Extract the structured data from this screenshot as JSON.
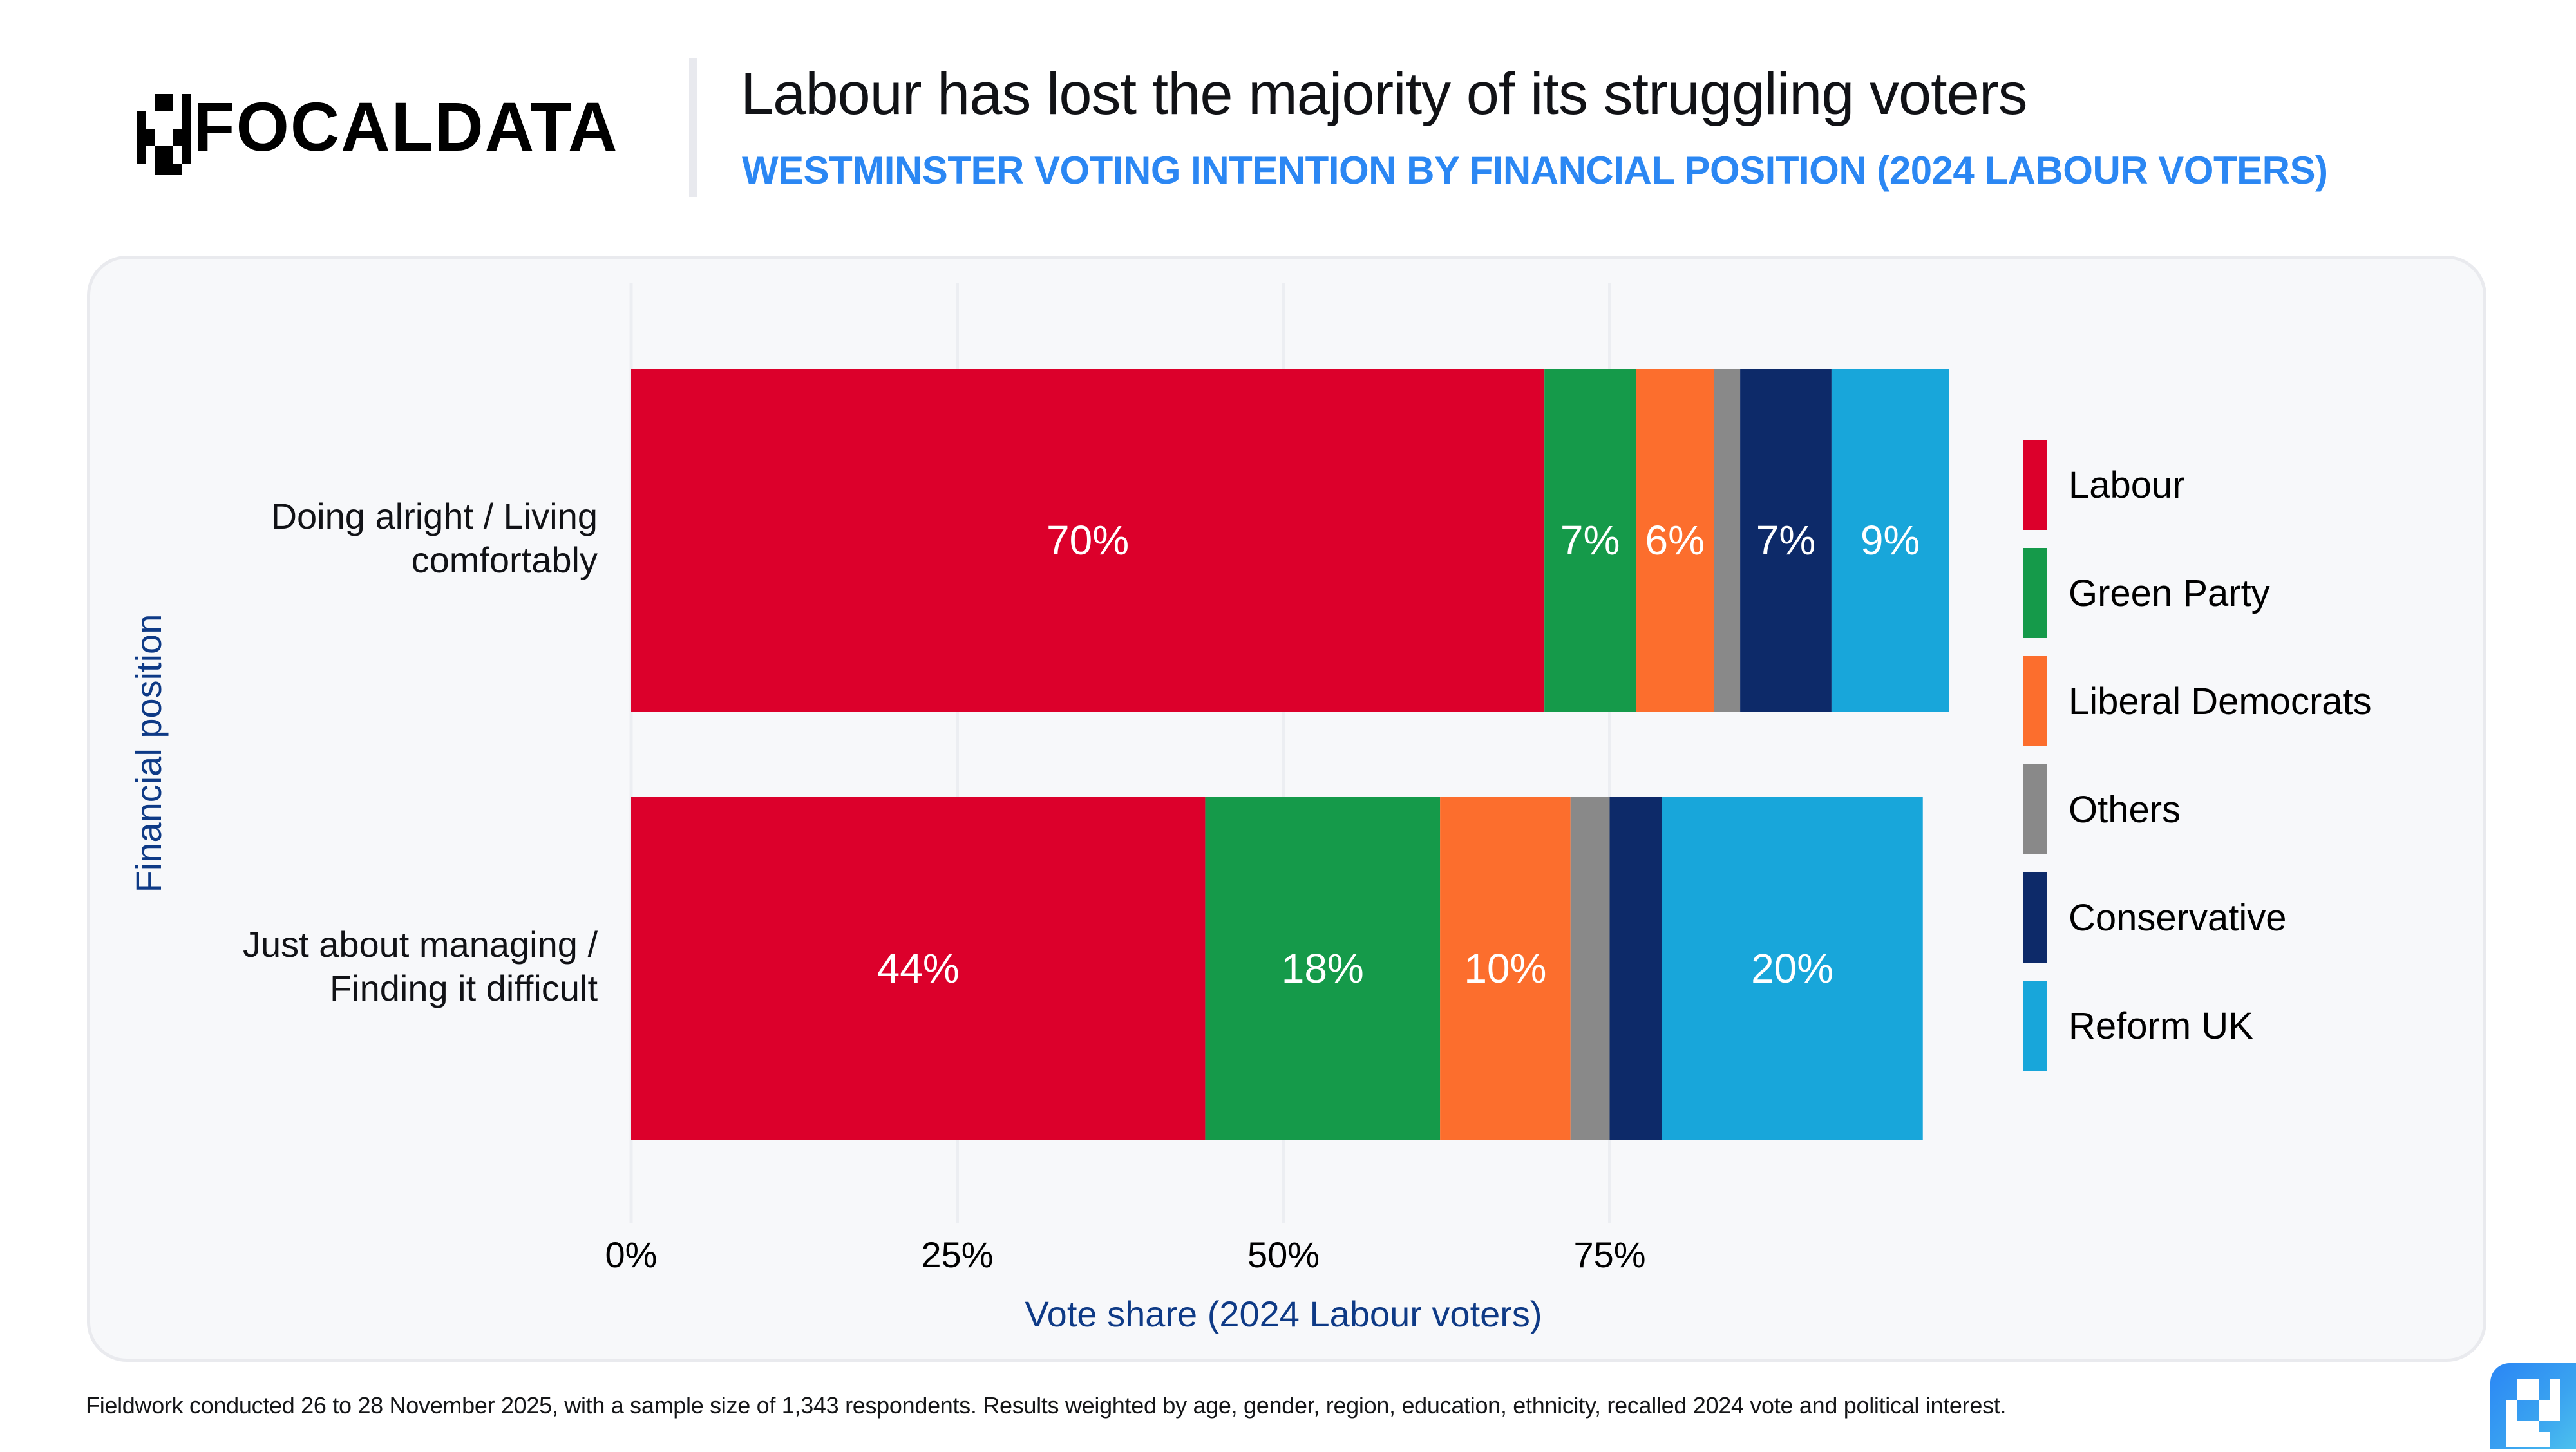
{
  "brand": {
    "name": "FOCALDATA",
    "logo_icon": "focaldata-pixel-logo-icon",
    "badge_icon": "focaldata-badge-icon"
  },
  "header": {
    "title": "Labour has lost the majority of its struggling voters",
    "subtitle": "WESTMINSTER VOTING INTENTION BY FINANCIAL POSITION (2024 LABOUR VOTERS)"
  },
  "footnote": "Fieldwork conducted 26 to 28 November 2025, with a sample size of 1,343 respondents. Results weighted by age, gender, region, education, ethnicity, recalled 2024 vote and political interest.",
  "colors": {
    "title_accent": "#2b87f3",
    "axis_title": "#0e3a86",
    "Labour": "#dc002b",
    "Green Party": "#159a4a",
    "Liberal Democrats": "#fc6e2d",
    "Others": "#898989",
    "Conservative": "#0d2a69",
    "Reform UK": "#18a6da"
  },
  "chart_data": {
    "type": "bar",
    "orientation": "horizontal",
    "stacked": true,
    "title": "Labour has lost the majority of its struggling voters",
    "subtitle": "WESTMINSTER VOTING INTENTION BY FINANCIAL POSITION (2024 LABOUR VOTERS)",
    "xlabel": "Vote share (2024 Labour voters)",
    "ylabel": "Financial position",
    "xlim": [
      0,
      100
    ],
    "xticks": [
      0,
      25,
      50,
      75
    ],
    "xtick_labels": [
      "0%",
      "25%",
      "50%",
      "75%"
    ],
    "grid": "vertical",
    "legend_position": "right",
    "categories": [
      "Doing alright / Living comfortably",
      "Just about managing / Finding it difficult"
    ],
    "category_lines": [
      [
        "Doing alright / Living",
        "comfortably"
      ],
      [
        "Just about managing /",
        "Finding it difficult"
      ]
    ],
    "series": [
      {
        "name": "Labour",
        "values": [
          70,
          44
        ],
        "labels": [
          "70%",
          "44%"
        ]
      },
      {
        "name": "Green Party",
        "values": [
          7,
          18
        ],
        "labels": [
          "7%",
          "18%"
        ]
      },
      {
        "name": "Liberal Democrats",
        "values": [
          6,
          10
        ],
        "labels": [
          "6%",
          "10%"
        ]
      },
      {
        "name": "Others",
        "values": [
          2,
          3
        ],
        "labels": [
          "",
          ""
        ]
      },
      {
        "name": "Conservative",
        "values": [
          7,
          4
        ],
        "labels": [
          "7%",
          ""
        ]
      },
      {
        "name": "Reform UK",
        "values": [
          9,
          20
        ],
        "labels": [
          "9%",
          "20%"
        ]
      }
    ]
  }
}
